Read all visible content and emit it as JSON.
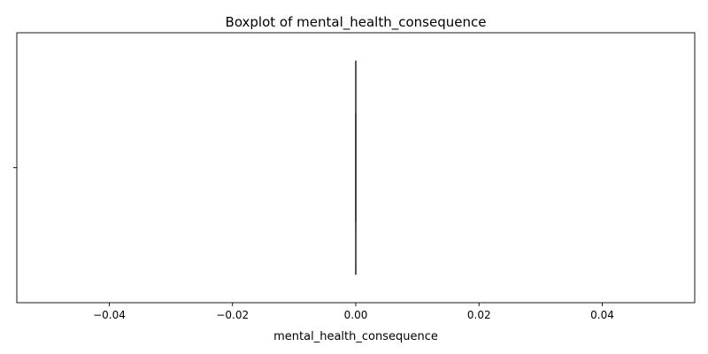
{
  "chart_data": {
    "type": "boxplot",
    "title": "Boxplot of mental_health_consequence",
    "xlabel": "mental_health_consequence",
    "ylabel": "",
    "orientation": "horizontal",
    "xlim": [
      -0.055,
      0.055
    ],
    "xticks": [
      -0.04,
      -0.02,
      0.0,
      0.02,
      0.04
    ],
    "xtick_labels": [
      "−0.04",
      "−0.02",
      "0.00",
      "0.02",
      "0.04"
    ],
    "categories": [
      ""
    ],
    "box": {
      "min": 0.0,
      "q1": 0.0,
      "median": 0.0,
      "q3": 0.0,
      "max": 0.0
    },
    "colors": {
      "box_line": "#3f3f3f",
      "axes": "#000000"
    },
    "grid": false,
    "legend": "none"
  }
}
